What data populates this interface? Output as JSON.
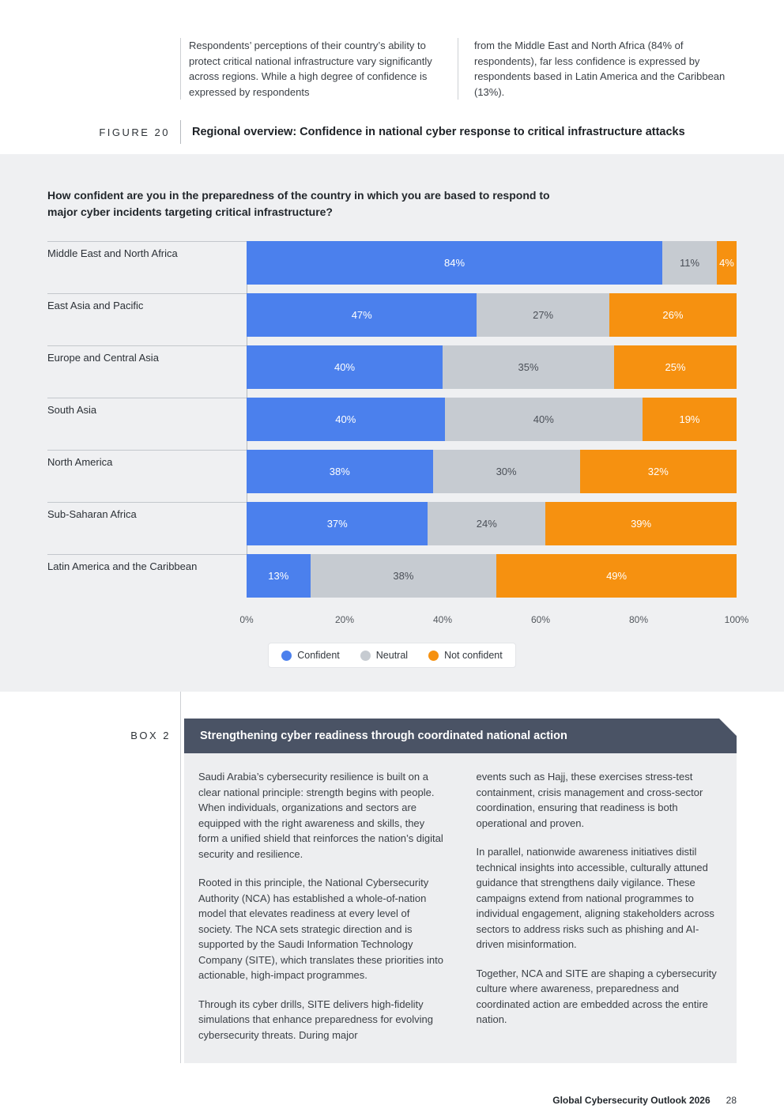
{
  "intro": {
    "col1": "Respondents’ perceptions of their country’s ability to protect critical national infrastructure vary significantly across regions. While a high degree of confidence is expressed by respondents",
    "col2": "from the Middle East and North Africa (84% of respondents), far less confidence is expressed by respondents based in Latin America and the Caribbean (13%)."
  },
  "figure": {
    "label": "FIGURE 20",
    "title": "Regional overview: Confidence in national cyber response to critical infrastructure attacks"
  },
  "chart_data": {
    "type": "bar",
    "orientation": "horizontal",
    "stacked": true,
    "title": "How confident are you in the preparedness of the country in which you are based to respond to major cyber incidents targeting critical infrastructure?",
    "categories": [
      "Middle East and North Africa",
      "East Asia and Pacific",
      "Europe and Central Asia",
      "South Asia",
      "North America",
      "Sub-Saharan Africa",
      "Latin America and the Caribbean"
    ],
    "series": [
      {
        "name": "Confident",
        "color": "#4b80ed",
        "values": [
          84,
          47,
          40,
          40,
          38,
          37,
          13
        ]
      },
      {
        "name": "Neutral",
        "color": "#c6cbd1",
        "values": [
          11,
          27,
          35,
          40,
          30,
          24,
          38
        ]
      },
      {
        "name": "Not confident",
        "color": "#f69110",
        "values": [
          4,
          26,
          25,
          19,
          32,
          39,
          49
        ]
      }
    ],
    "x_ticks": [
      "0%",
      "20%",
      "40%",
      "60%",
      "80%",
      "100%"
    ],
    "xlim": [
      0,
      100
    ],
    "value_suffix": "%",
    "legend_position": "bottom",
    "grid": false
  },
  "box2": {
    "label": "BOX 2",
    "title": "Strengthening cyber readiness through coordinated national action",
    "left": [
      "Saudi Arabia’s cybersecurity resilience is built on a clear national principle: strength begins with people. When individuals, organizations and sectors are equipped with the right awareness and skills, they form a unified shield that reinforces the nation’s digital security and resilience.",
      "Rooted in this principle, the National Cybersecurity Authority (NCA) has established a whole-of-nation model that elevates readiness at every level of society. The NCA sets strategic direction and is supported by the Saudi Information Technology Company (SITE), which translates these priorities into actionable, high-impact programmes.",
      "Through its cyber drills, SITE delivers high-fidelity simulations that enhance preparedness for evolving cybersecurity threats. During major"
    ],
    "right": [
      "events such as Hajj, these exercises stress-test containment, crisis management and cross-sector coordination, ensuring that readiness is both operational and proven.",
      "In parallel, nationwide awareness initiatives distil technical insights into accessible, culturally attuned guidance that strengthens daily vigilance. These campaigns extend from national programmes to individual engagement, aligning stakeholders across sectors to address risks such as phishing and AI-driven misinformation.",
      "Together, NCA and SITE are shaping a cybersecurity culture where awareness, preparedness and coordinated action are embedded across the entire nation."
    ]
  },
  "footer": {
    "title": "Global Cybersecurity Outlook 2026",
    "page": "28"
  }
}
